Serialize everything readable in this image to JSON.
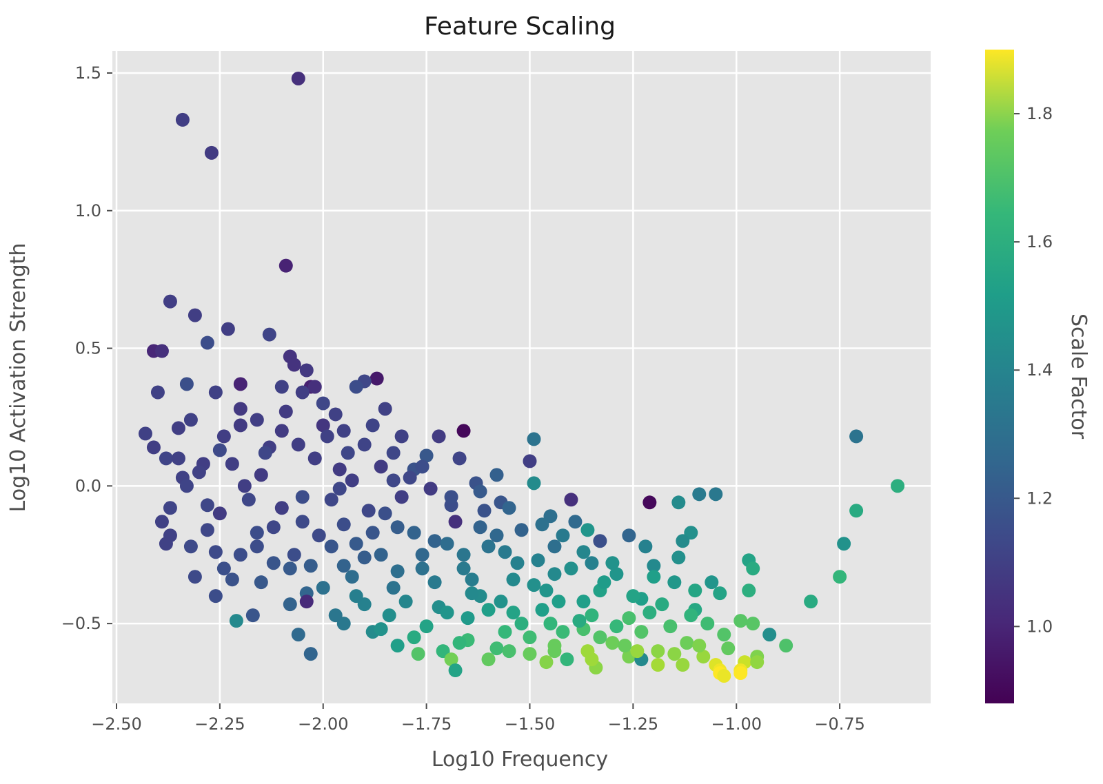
{
  "chart_data": {
    "type": "scatter",
    "title": "Feature Scaling",
    "xlabel": "Log10 Frequency",
    "ylabel": "Log10 Activation Strength",
    "colorbar_label": "Scale Factor",
    "xlim": [
      -2.51,
      -0.53
    ],
    "ylim": [
      -0.79,
      1.58
    ],
    "clim": [
      0.88,
      1.9
    ],
    "colormap": "viridis",
    "grid": true,
    "plot_background": "#e5e5e5",
    "grid_color": "#ffffff",
    "x_ticks": [
      {
        "value": -2.5,
        "label": "−2.50"
      },
      {
        "value": -2.25,
        "label": "−2.25"
      },
      {
        "value": -2.0,
        "label": "−2.00"
      },
      {
        "value": -1.75,
        "label": "−1.75"
      },
      {
        "value": -1.5,
        "label": "−1.50"
      },
      {
        "value": -1.25,
        "label": "−1.25"
      },
      {
        "value": -1.0,
        "label": "−1.00"
      },
      {
        "value": -0.75,
        "label": "−0.75"
      }
    ],
    "y_ticks": [
      {
        "value": -0.5,
        "label": "−0.5"
      },
      {
        "value": 0.0,
        "label": "0.0"
      },
      {
        "value": 0.5,
        "label": "0.5"
      },
      {
        "value": 1.0,
        "label": "1.0"
      },
      {
        "value": 1.5,
        "label": "1.5"
      }
    ],
    "colorbar_ticks": [
      {
        "value": 1.0,
        "label": "1.0"
      },
      {
        "value": 1.2,
        "label": "1.2"
      },
      {
        "value": 1.4,
        "label": "1.4"
      },
      {
        "value": 1.6,
        "label": "1.6"
      },
      {
        "value": 1.8,
        "label": "1.8"
      }
    ],
    "points": [
      [
        -2.06,
        1.48,
        1.02
      ],
      [
        -2.34,
        1.33,
        1.07
      ],
      [
        -2.27,
        1.21,
        1.06
      ],
      [
        -2.09,
        0.8,
        0.98
      ],
      [
        -2.37,
        0.67,
        1.07
      ],
      [
        -2.31,
        0.62,
        1.07
      ],
      [
        -2.23,
        0.57,
        1.07
      ],
      [
        -2.13,
        0.55,
        1.09
      ],
      [
        -2.28,
        0.52,
        1.12
      ],
      [
        -2.41,
        0.49,
        0.99
      ],
      [
        -2.39,
        0.49,
        1.02
      ],
      [
        -2.08,
        0.47,
        1.03
      ],
      [
        -2.07,
        0.44,
        1.03
      ],
      [
        -2.04,
        0.42,
        1.05
      ],
      [
        -1.87,
        0.39,
        0.95
      ],
      [
        -1.9,
        0.38,
        1.1
      ],
      [
        -1.92,
        0.36,
        1.12
      ],
      [
        -2.33,
        0.37,
        1.13
      ],
      [
        -2.2,
        0.37,
        0.98
      ],
      [
        -2.03,
        0.36,
        0.97
      ],
      [
        -2.02,
        0.36,
        1.02
      ],
      [
        -2.1,
        0.36,
        1.08
      ],
      [
        -2.26,
        0.34,
        1.08
      ],
      [
        -2.4,
        0.34,
        1.08
      ],
      [
        -2.05,
        0.34,
        1.07
      ],
      [
        -2.0,
        0.3,
        1.1
      ],
      [
        -2.2,
        0.28,
        1.05
      ],
      [
        -1.85,
        0.28,
        1.08
      ],
      [
        -2.09,
        0.27,
        1.06
      ],
      [
        -1.97,
        0.26,
        1.08
      ],
      [
        -2.32,
        0.24,
        1.08
      ],
      [
        -2.0,
        0.22,
        1.04
      ],
      [
        -1.88,
        0.22,
        1.09
      ],
      [
        -2.2,
        0.22,
        1.06
      ],
      [
        -2.35,
        0.21,
        1.07
      ],
      [
        -1.81,
        0.18,
        1.08
      ],
      [
        -1.72,
        0.18,
        1.06
      ],
      [
        -2.43,
        0.19,
        1.08
      ],
      [
        -1.49,
        0.17,
        1.27
      ],
      [
        -1.66,
        0.2,
        0.9
      ],
      [
        -2.13,
        0.14,
        1.07
      ],
      [
        -2.41,
        0.14,
        1.07
      ],
      [
        -2.25,
        0.13,
        1.11
      ],
      [
        -1.94,
        0.12,
        1.1
      ],
      [
        -1.75,
        0.11,
        1.16
      ],
      [
        -2.38,
        0.1,
        1.09
      ],
      [
        -2.02,
        0.1,
        1.07
      ],
      [
        -1.67,
        0.1,
        1.09
      ],
      [
        -2.29,
        0.08,
        1.07
      ],
      [
        -1.86,
        0.07,
        1.06
      ],
      [
        -1.5,
        0.09,
        1.07
      ],
      [
        -1.96,
        0.06,
        1.06
      ],
      [
        -1.78,
        0.06,
        1.14
      ],
      [
        -1.58,
        0.04,
        1.19
      ],
      [
        -2.15,
        0.04,
        1.06
      ],
      [
        -2.34,
        0.03,
        1.08
      ],
      [
        -1.83,
        0.02,
        1.1
      ],
      [
        -1.49,
        0.01,
        1.37
      ],
      [
        -1.63,
        0.01,
        1.14
      ],
      [
        -2.19,
        0.0,
        1.07
      ],
      [
        -2.33,
        0.0,
        1.09
      ],
      [
        -1.74,
        -0.01,
        1.06
      ],
      [
        -1.96,
        -0.01,
        1.1
      ],
      [
        -1.09,
        -0.03,
        1.3
      ],
      [
        -1.05,
        -0.03,
        1.29
      ],
      [
        -1.4,
        -0.05,
        1.02
      ],
      [
        -2.05,
        -0.04,
        1.12
      ],
      [
        -1.81,
        -0.04,
        1.07
      ],
      [
        -1.14,
        -0.06,
        1.37
      ],
      [
        -1.21,
        -0.06,
        0.9
      ],
      [
        -1.57,
        -0.06,
        1.15
      ],
      [
        -2.28,
        -0.07,
        1.1
      ],
      [
        -1.69,
        -0.07,
        1.12
      ],
      [
        -2.37,
        -0.08,
        1.09
      ],
      [
        -1.89,
        -0.09,
        1.1
      ],
      [
        -1.61,
        -0.09,
        1.14
      ],
      [
        -1.45,
        -0.11,
        1.25
      ],
      [
        -1.39,
        -0.13,
        1.23
      ],
      [
        -1.68,
        -0.13,
        1.02
      ],
      [
        -2.39,
        -0.13,
        1.08
      ],
      [
        -1.95,
        -0.14,
        1.12
      ],
      [
        -1.82,
        -0.15,
        1.18
      ],
      [
        -1.52,
        -0.16,
        1.2
      ],
      [
        -1.11,
        -0.17,
        1.39
      ],
      [
        -2.16,
        -0.17,
        1.12
      ],
      [
        -1.36,
        -0.16,
        1.41
      ],
      [
        -2.37,
        -0.18,
        1.08
      ],
      [
        -1.73,
        -0.2,
        1.2
      ],
      [
        -1.33,
        -0.2,
        1.13
      ],
      [
        -1.26,
        -0.18,
        1.21
      ],
      [
        -1.13,
        -0.2,
        1.37
      ],
      [
        -2.38,
        -0.21,
        1.08
      ],
      [
        -1.92,
        -0.21,
        1.17
      ],
      [
        -1.6,
        -0.22,
        1.27
      ],
      [
        -1.22,
        -0.22,
        1.33
      ],
      [
        -1.44,
        -0.22,
        1.25
      ],
      [
        -2.26,
        -0.24,
        1.11
      ],
      [
        -2.07,
        -0.25,
        1.12
      ],
      [
        -1.86,
        -0.25,
        1.2
      ],
      [
        -1.66,
        -0.25,
        1.28
      ],
      [
        -1.14,
        -0.26,
        1.39
      ],
      [
        -0.97,
        -0.27,
        1.47
      ],
      [
        -1.53,
        -0.28,
        1.33
      ],
      [
        -1.35,
        -0.28,
        1.33
      ],
      [
        -2.03,
        -0.29,
        1.18
      ],
      [
        -1.2,
        -0.29,
        1.36
      ],
      [
        -0.96,
        -0.3,
        1.5
      ],
      [
        -1.76,
        -0.3,
        1.26
      ],
      [
        -2.24,
        -0.3,
        1.13
      ],
      [
        -1.44,
        -0.32,
        1.36
      ],
      [
        -1.29,
        -0.32,
        1.41
      ],
      [
        -0.75,
        -0.33,
        1.55
      ],
      [
        -1.93,
        -0.33,
        1.24
      ],
      [
        -1.06,
        -0.35,
        1.41
      ],
      [
        -2.31,
        -0.33,
        1.11
      ],
      [
        -1.64,
        -0.34,
        1.31
      ],
      [
        -1.15,
        -0.35,
        1.42
      ],
      [
        -2.15,
        -0.35,
        1.16
      ],
      [
        -1.49,
        -0.36,
        1.39
      ],
      [
        -1.83,
        -0.37,
        1.27
      ],
      [
        -1.33,
        -0.38,
        1.46
      ],
      [
        -0.97,
        -0.38,
        1.52
      ],
      [
        -2.04,
        -0.39,
        1.21
      ],
      [
        -1.04,
        -0.39,
        1.47
      ],
      [
        -1.62,
        -0.4,
        1.37
      ],
      [
        -2.26,
        -0.4,
        1.12
      ],
      [
        -1.23,
        -0.41,
        1.45
      ],
      [
        -1.43,
        -0.42,
        1.45
      ],
      [
        -0.82,
        -0.42,
        1.5
      ],
      [
        -1.9,
        -0.43,
        1.33
      ],
      [
        -1.72,
        -0.44,
        1.38
      ],
      [
        -2.04,
        -0.42,
        1.0
      ],
      [
        -1.1,
        -0.45,
        1.49
      ],
      [
        -1.54,
        -0.46,
        1.47
      ],
      [
        -1.35,
        -0.47,
        1.54
      ],
      [
        -2.17,
        -0.47,
        1.15
      ],
      [
        -1.84,
        -0.47,
        1.38
      ],
      [
        -1.26,
        -0.48,
        1.6
      ],
      [
        -1.65,
        -0.48,
        1.43
      ],
      [
        -0.99,
        -0.49,
        1.63
      ],
      [
        -1.45,
        -0.5,
        1.55
      ],
      [
        -2.21,
        -0.49,
        1.36
      ],
      [
        -1.95,
        -0.5,
        1.29
      ],
      [
        -1.07,
        -0.5,
        1.58
      ],
      [
        -1.16,
        -0.51,
        1.6
      ],
      [
        -0.96,
        -0.5,
        1.63
      ],
      [
        -1.75,
        -0.51,
        1.47
      ],
      [
        -1.37,
        -0.52,
        1.6
      ],
      [
        -1.56,
        -0.53,
        1.56
      ],
      [
        -1.23,
        -0.53,
        1.62
      ],
      [
        -1.88,
        -0.53,
        1.37
      ],
      [
        -1.03,
        -0.54,
        1.62
      ],
      [
        -1.5,
        -0.55,
        1.58
      ],
      [
        -2.06,
        -0.54,
        1.23
      ],
      [
        -0.92,
        -0.54,
        1.38
      ],
      [
        -1.65,
        -0.56,
        1.57
      ],
      [
        -1.3,
        -0.57,
        1.67
      ],
      [
        -1.12,
        -0.57,
        1.67
      ],
      [
        -1.44,
        -0.58,
        1.66
      ],
      [
        -1.82,
        -0.58,
        1.45
      ],
      [
        -0.88,
        -0.58,
        1.61
      ],
      [
        -1.02,
        -0.59,
        1.65
      ],
      [
        -1.58,
        -0.59,
        1.58
      ],
      [
        -1.19,
        -0.6,
        1.72
      ],
      [
        -1.36,
        -0.6,
        1.75
      ],
      [
        -1.71,
        -0.6,
        1.55
      ],
      [
        -1.77,
        -0.61,
        1.62
      ],
      [
        -0.95,
        -0.62,
        1.7
      ],
      [
        -1.26,
        -0.62,
        1.69
      ],
      [
        -1.08,
        -0.62,
        1.74
      ],
      [
        -1.5,
        -0.61,
        1.66
      ],
      [
        -1.41,
        -0.63,
        1.55
      ],
      [
        -1.69,
        -0.63,
        1.68
      ],
      [
        -1.6,
        -0.63,
        1.65
      ],
      [
        -0.98,
        -0.64,
        1.82
      ],
      [
        -1.23,
        -0.63,
        1.36
      ],
      [
        -1.13,
        -0.65,
        1.74
      ],
      [
        -1.05,
        -0.65,
        1.85
      ],
      [
        -0.95,
        -0.64,
        1.73
      ],
      [
        -1.46,
        -0.64,
        1.71
      ],
      [
        -1.34,
        -0.66,
        1.72
      ],
      [
        -1.19,
        -0.65,
        1.76
      ],
      [
        -1.04,
        -0.67,
        1.88
      ],
      [
        -0.99,
        -0.67,
        1.88
      ],
      [
        -1.68,
        -0.67,
        1.47
      ],
      [
        -1.04,
        -0.68,
        1.9
      ],
      [
        -0.99,
        -0.68,
        1.9
      ],
      [
        -1.03,
        -0.69,
        1.87
      ],
      [
        -2.03,
        -0.61,
        1.21
      ],
      [
        -0.71,
        0.18,
        1.27
      ],
      [
        -0.61,
        0.0,
        1.52
      ],
      [
        -0.71,
        -0.09,
        1.5
      ],
      [
        -0.74,
        -0.21,
        1.4
      ],
      [
        -2.3,
        0.05,
        1.08
      ],
      [
        -2.22,
        0.08,
        1.07
      ],
      [
        -2.14,
        0.12,
        1.1
      ],
      [
        -2.06,
        0.15,
        1.07
      ],
      [
        -2.18,
        -0.05,
        1.1
      ],
      [
        -2.1,
        -0.08,
        1.07
      ],
      [
        -2.25,
        -0.1,
        1.06
      ],
      [
        -2.12,
        -0.15,
        1.1
      ],
      [
        -2.01,
        -0.18,
        1.11
      ],
      [
        -1.98,
        -0.05,
        1.1
      ],
      [
        -1.93,
        0.02,
        1.07
      ],
      [
        -1.85,
        -0.1,
        1.13
      ],
      [
        -1.78,
        -0.17,
        1.2
      ],
      [
        -1.7,
        -0.21,
        1.24
      ],
      [
        -1.62,
        -0.15,
        1.2
      ],
      [
        -1.56,
        -0.24,
        1.3
      ],
      [
        -1.48,
        -0.27,
        1.33
      ],
      [
        -1.4,
        -0.3,
        1.39
      ],
      [
        -1.32,
        -0.35,
        1.44
      ],
      [
        -1.25,
        -0.4,
        1.47
      ],
      [
        -1.18,
        -0.43,
        1.5
      ],
      [
        -1.11,
        -0.47,
        1.54
      ],
      [
        -2.08,
        -0.3,
        1.17
      ],
      [
        -2.0,
        -0.37,
        1.26
      ],
      [
        -1.92,
        -0.4,
        1.32
      ],
      [
        -1.8,
        -0.42,
        1.35
      ],
      [
        -1.7,
        -0.46,
        1.41
      ],
      [
        -1.6,
        -0.45,
        1.45
      ],
      [
        -1.52,
        -0.5,
        1.52
      ],
      [
        -1.42,
        -0.53,
        1.57
      ],
      [
        -1.33,
        -0.55,
        1.62
      ],
      [
        -1.27,
        -0.58,
        1.66
      ],
      [
        -1.15,
        -0.61,
        1.72
      ],
      [
        -1.9,
        -0.26,
        1.18
      ],
      [
        -1.82,
        -0.31,
        1.25
      ],
      [
        -1.73,
        -0.35,
        1.3
      ],
      [
        -1.64,
        -0.39,
        1.36
      ],
      [
        -1.57,
        -0.42,
        1.4
      ],
      [
        -1.47,
        -0.45,
        1.45
      ],
      [
        -1.38,
        -0.49,
        1.5
      ],
      [
        -1.29,
        -0.51,
        1.56
      ],
      [
        -2.2,
        -0.25,
        1.12
      ],
      [
        -2.12,
        -0.28,
        1.15
      ],
      [
        -1.98,
        -0.22,
        1.15
      ],
      [
        -1.88,
        -0.17,
        1.15
      ],
      [
        -1.66,
        -0.3,
        1.3
      ],
      [
        -1.54,
        -0.34,
        1.36
      ],
      [
        -1.46,
        -0.38,
        1.41
      ],
      [
        -1.37,
        -0.42,
        1.45
      ],
      [
        -1.21,
        -0.46,
        1.52
      ],
      [
        -2.05,
        -0.13,
        1.11
      ],
      [
        -1.95,
        -0.29,
        1.2
      ],
      [
        -1.76,
        -0.25,
        1.22
      ],
      [
        -1.58,
        -0.18,
        1.22
      ],
      [
        -2.28,
        -0.16,
        1.1
      ],
      [
        -2.16,
        -0.22,
        1.12
      ],
      [
        -2.35,
        0.1,
        1.08
      ],
      [
        -1.99,
        0.18,
        1.08
      ],
      [
        -1.79,
        0.03,
        1.1
      ],
      [
        -1.69,
        -0.04,
        1.13
      ],
      [
        -1.95,
        0.2,
        1.08
      ],
      [
        -2.24,
        0.18,
        1.07
      ],
      [
        -2.16,
        0.24,
        1.07
      ],
      [
        -2.1,
        0.2,
        1.06
      ],
      [
        -1.9,
        0.15,
        1.09
      ],
      [
        -1.83,
        0.12,
        1.1
      ],
      [
        -1.76,
        0.07,
        1.12
      ],
      [
        -1.62,
        -0.02,
        1.17
      ],
      [
        -1.55,
        -0.08,
        1.21
      ],
      [
        -1.47,
        -0.14,
        1.26
      ],
      [
        -1.42,
        -0.18,
        1.3
      ],
      [
        -1.37,
        -0.24,
        1.35
      ],
      [
        -1.3,
        -0.28,
        1.4
      ],
      [
        -1.2,
        -0.33,
        1.45
      ],
      [
        -1.1,
        -0.38,
        1.48
      ],
      [
        -2.32,
        -0.22,
        1.11
      ],
      [
        -2.22,
        -0.34,
        1.14
      ],
      [
        -2.08,
        -0.43,
        1.2
      ],
      [
        -1.97,
        -0.47,
        1.28
      ],
      [
        -1.86,
        -0.52,
        1.4
      ],
      [
        -1.78,
        -0.55,
        1.5
      ],
      [
        -1.67,
        -0.57,
        1.55
      ],
      [
        -1.55,
        -0.6,
        1.6
      ],
      [
        -1.44,
        -0.6,
        1.66
      ],
      [
        -1.35,
        -0.63,
        1.75
      ],
      [
        -1.24,
        -0.6,
        1.74
      ],
      [
        -1.09,
        -0.58,
        1.7
      ]
    ]
  }
}
